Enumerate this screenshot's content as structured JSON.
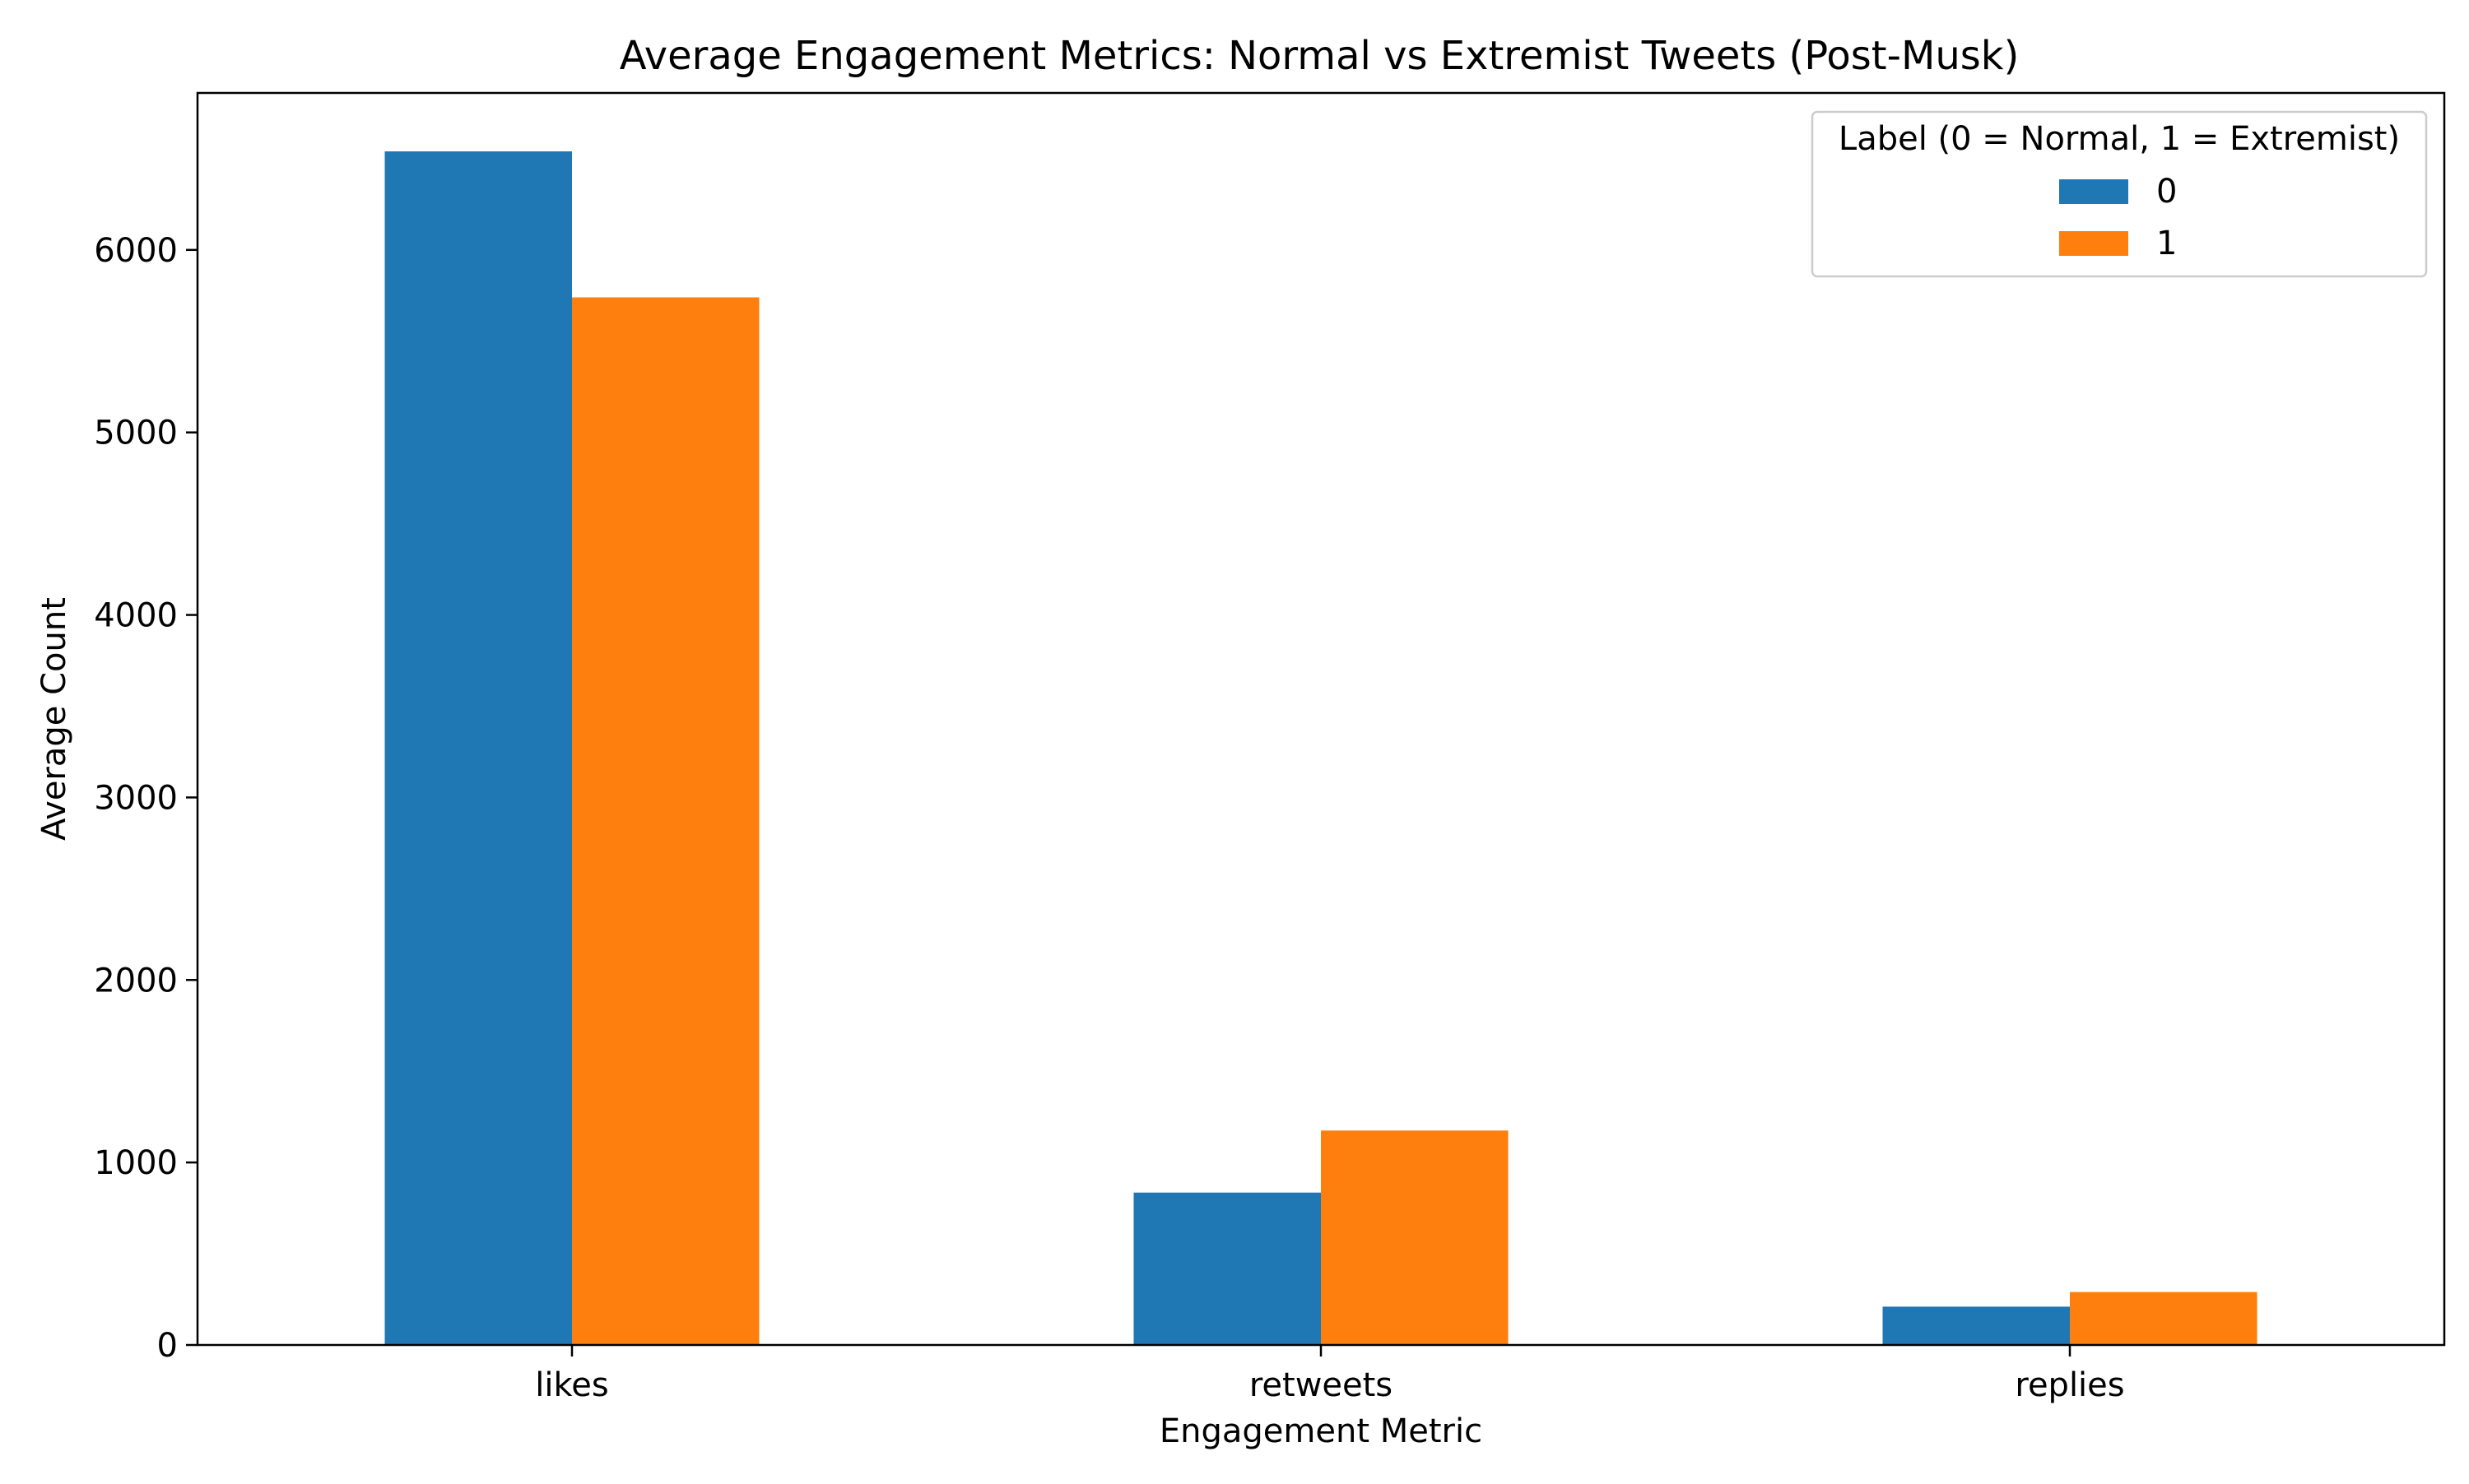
{
  "chart_data": {
    "type": "bar",
    "title": "Average Engagement Metrics: Normal vs Extremist Tweets (Post-Musk)",
    "xlabel": "Engagement Metric",
    "ylabel": "Average Count",
    "categories": [
      "likes",
      "retweets",
      "replies"
    ],
    "series": [
      {
        "name": "0",
        "values": [
          6540,
          835,
          210
        ],
        "color": "#1f77b4"
      },
      {
        "name": "1",
        "values": [
          5740,
          1175,
          290
        ],
        "color": "#ff7f0e"
      }
    ],
    "ylim": [
      0,
      6860
    ],
    "yticks": [
      0,
      1000,
      2000,
      3000,
      4000,
      5000,
      6000
    ],
    "legend": {
      "title": "Label (0 = Normal, 1 = Extremist)",
      "placement": "top-right"
    },
    "grid": false
  }
}
